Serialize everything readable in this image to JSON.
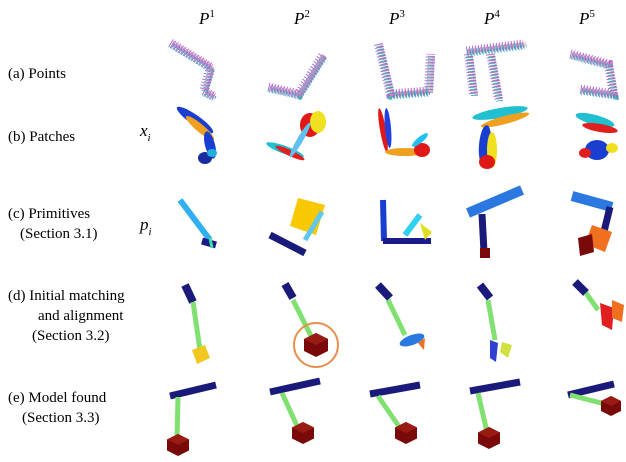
{
  "header": {
    "columns": [
      {
        "letter": "P",
        "index": "1"
      },
      {
        "letter": "P",
        "index": "2"
      },
      {
        "letter": "P",
        "index": "3"
      },
      {
        "letter": "P",
        "index": "4"
      },
      {
        "letter": "P",
        "index": "5"
      }
    ]
  },
  "rows": [
    {
      "label": [
        "(a) Points"
      ]
    },
    {
      "label": [
        "(b) Patches"
      ],
      "symbol": {
        "letter": "x",
        "subscript": "i"
      }
    },
    {
      "label": [
        "(c) Primitives",
        "(Section 3.1)"
      ],
      "symbol": {
        "letter": "p",
        "subscript": "i"
      }
    },
    {
      "label": [
        "(d) Initial matching",
        "and alignment",
        "(Section 3.2)"
      ]
    },
    {
      "label": [
        "(e) Model found",
        "(Section 3.3)"
      ]
    }
  ]
}
